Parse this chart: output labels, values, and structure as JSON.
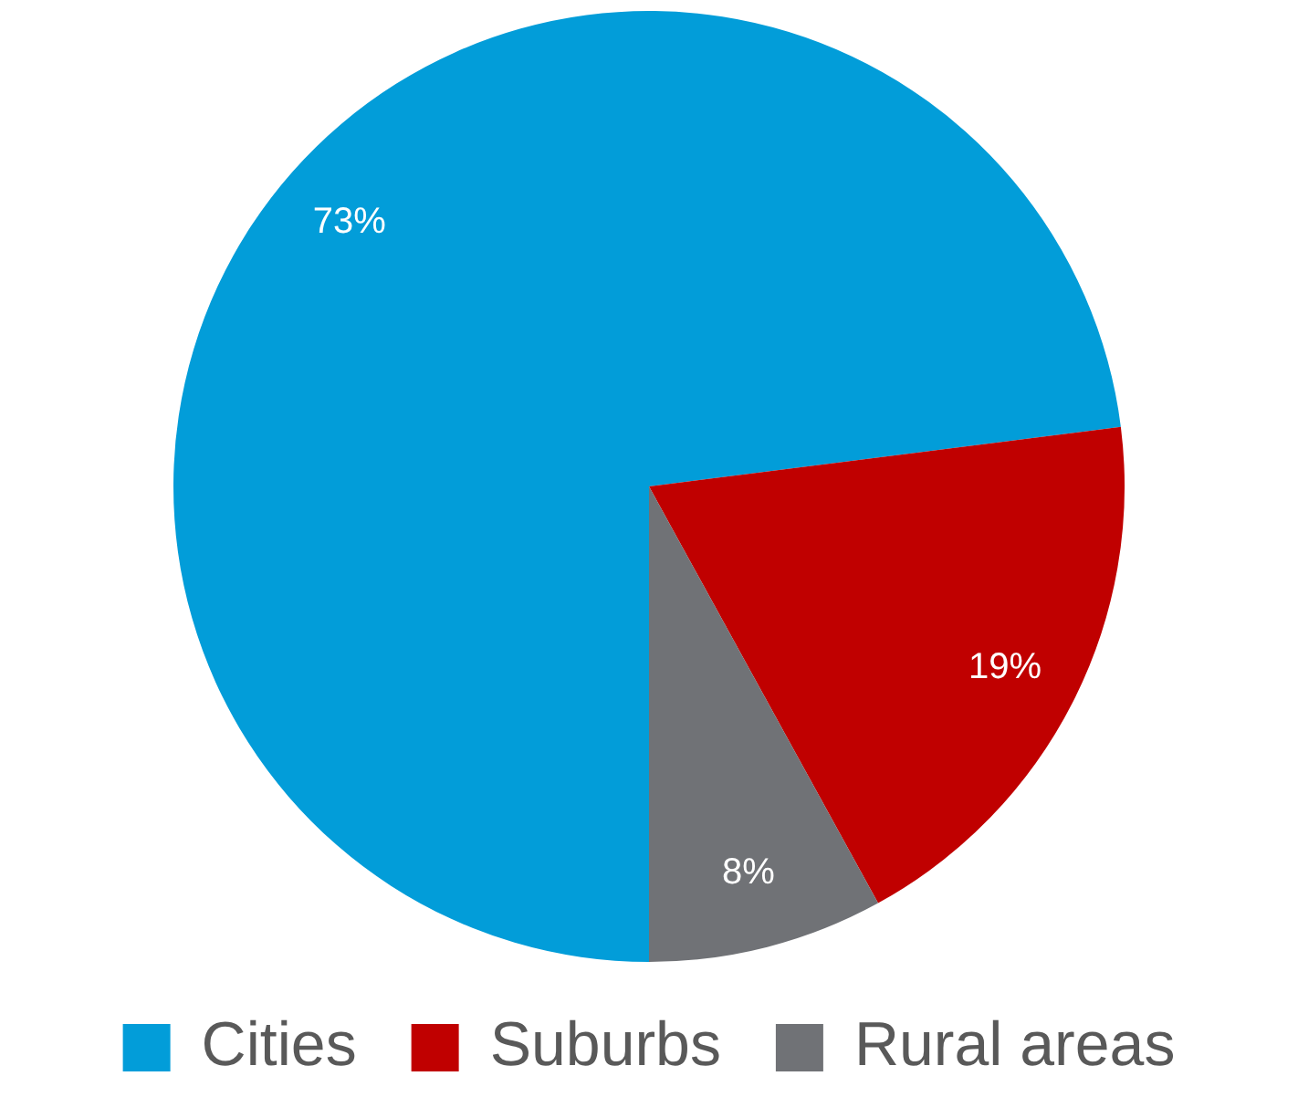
{
  "chart_data": {
    "type": "pie",
    "categories": [
      "Cities",
      "Suburbs",
      "Rural areas"
    ],
    "values": [
      73,
      19,
      8
    ],
    "colors": [
      "#029dd9",
      "#c00000",
      "#707276"
    ],
    "value_labels": [
      "73%",
      "19%",
      "8%"
    ],
    "legend": "bottom"
  }
}
